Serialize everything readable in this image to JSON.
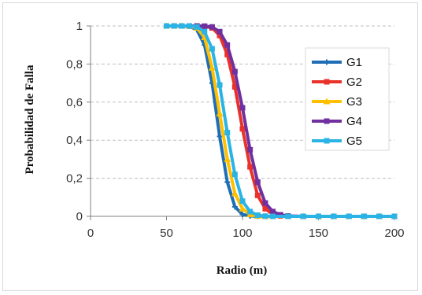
{
  "chart_data": {
    "type": "line",
    "title": "",
    "xlabel": "Radio (m)",
    "ylabel": "Probabilidad de Falla",
    "xlim": [
      0,
      200
    ],
    "ylim": [
      0,
      1
    ],
    "x_ticks": [
      "0",
      "50",
      "100",
      "150",
      "200"
    ],
    "y_ticks": [
      "0",
      "0,2",
      "0,4",
      "0,6",
      "0,8",
      "1"
    ],
    "grid": "horizontal dashed",
    "legend_position": "right",
    "series": [
      {
        "name": "G1",
        "color": "#1f6eb5",
        "marker": "plus",
        "x": [
          50,
          55,
          60,
          65,
          70,
          75,
          80,
          85,
          90,
          95,
          100,
          105,
          110,
          115,
          120,
          130,
          140,
          150,
          160,
          170,
          180,
          190,
          200
        ],
        "y": [
          1,
          1,
          1,
          0.998,
          0.98,
          0.9,
          0.7,
          0.42,
          0.18,
          0.05,
          0.01,
          0.002,
          0,
          0,
          0,
          0,
          0,
          0,
          0,
          0,
          0,
          0,
          0
        ]
      },
      {
        "name": "G2",
        "color": "#e8322a",
        "marker": "square",
        "x": [
          50,
          55,
          60,
          65,
          70,
          75,
          80,
          85,
          90,
          95,
          100,
          105,
          110,
          115,
          120,
          125,
          130,
          140,
          150,
          160,
          170,
          180,
          190,
          200
        ],
        "y": [
          1,
          1,
          1,
          1,
          1,
          0.998,
          0.99,
          0.95,
          0.85,
          0.68,
          0.46,
          0.26,
          0.11,
          0.04,
          0.01,
          0.003,
          0,
          0,
          0,
          0,
          0,
          0,
          0,
          0
        ]
      },
      {
        "name": "G3",
        "color": "#ffc000",
        "marker": "triangle",
        "x": [
          50,
          55,
          60,
          65,
          70,
          75,
          80,
          85,
          90,
          95,
          100,
          105,
          110,
          115,
          120,
          130,
          140,
          150,
          160,
          170,
          180,
          190,
          200
        ],
        "y": [
          1,
          1,
          1,
          0.999,
          0.99,
          0.94,
          0.78,
          0.54,
          0.3,
          0.12,
          0.04,
          0.01,
          0.002,
          0,
          0,
          0,
          0,
          0,
          0,
          0,
          0,
          0,
          0
        ]
      },
      {
        "name": "G4",
        "color": "#7030a0",
        "marker": "square",
        "x": [
          50,
          55,
          60,
          65,
          70,
          75,
          80,
          85,
          90,
          95,
          100,
          105,
          110,
          115,
          120,
          125,
          130,
          140,
          150,
          160,
          170,
          180,
          190,
          200
        ],
        "y": [
          1,
          1,
          1,
          1,
          1,
          0.999,
          0.995,
          0.97,
          0.9,
          0.76,
          0.57,
          0.35,
          0.18,
          0.07,
          0.025,
          0.008,
          0.002,
          0,
          0,
          0,
          0,
          0,
          0,
          0
        ]
      },
      {
        "name": "G5",
        "color": "#2bb3e6",
        "marker": "square",
        "x": [
          50,
          55,
          60,
          65,
          70,
          75,
          80,
          85,
          90,
          95,
          100,
          105,
          110,
          115,
          120,
          130,
          140,
          150,
          160,
          170,
          180,
          190,
          200
        ],
        "y": [
          1,
          1,
          1,
          1,
          0.995,
          0.97,
          0.88,
          0.69,
          0.44,
          0.22,
          0.08,
          0.025,
          0.006,
          0.001,
          0,
          0,
          0,
          0,
          0,
          0,
          0,
          0,
          0
        ]
      }
    ]
  }
}
